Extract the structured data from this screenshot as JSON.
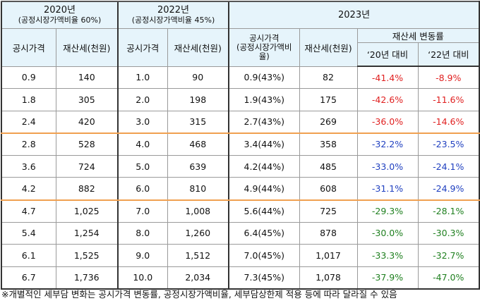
{
  "header": {
    "y2020": {
      "title": "2020년",
      "sub": "(공정시장가액비율 60%)"
    },
    "y2022": {
      "title": "2022년",
      "sub": "(공정시장가액비율 45%)"
    },
    "y2023": {
      "title": "2023년"
    },
    "col_price": "공시가격",
    "col_tax": "재산세(천원)",
    "col_price_ratio_1": "공시가격",
    "col_price_ratio_2": "(공정시장가액비",
    "col_price_ratio_3": "율)",
    "col_change": "재산세 변동률",
    "col_vs2020": "‘20년 대비",
    "col_vs2022": "‘22년 대비"
  },
  "rows": [
    {
      "p20": "0.9",
      "t20": "140",
      "p22": "1.0",
      "t22": "90",
      "p23": "0.9(43%)",
      "t23": "82",
      "c20": "-41.4%",
      "c22": "-8.9%"
    },
    {
      "p20": "1.8",
      "t20": "305",
      "p22": "2.0",
      "t22": "198",
      "p23": "1.9(43%)",
      "t23": "175",
      "c20": "-42.6%",
      "c22": "-11.6%"
    },
    {
      "p20": "2.4",
      "t20": "420",
      "p22": "3.0",
      "t22": "315",
      "p23": "2.7(43%)",
      "t23": "269",
      "c20": "-36.0%",
      "c22": "-14.6%"
    },
    {
      "p20": "2.8",
      "t20": "528",
      "p22": "4.0",
      "t22": "468",
      "p23": "3.4(44%)",
      "t23": "358",
      "c20": "-32.2%",
      "c22": "-23.5%"
    },
    {
      "p20": "3.6",
      "t20": "724",
      "p22": "5.0",
      "t22": "639",
      "p23": "4.2(44%)",
      "t23": "485",
      "c20": "-33.0%",
      "c22": "-24.1%"
    },
    {
      "p20": "4.2",
      "t20": "882",
      "p22": "6.0",
      "t22": "810",
      "p23": "4.9(44%)",
      "t23": "608",
      "c20": "-31.1%",
      "c22": "-24.9%"
    },
    {
      "p20": "4.7",
      "t20": "1,025",
      "p22": "7.0",
      "t22": "1,008",
      "p23": "5.6(44%)",
      "t23": "725",
      "c20": "-29.3%",
      "c22": "-28.1%"
    },
    {
      "p20": "5.4",
      "t20": "1,254",
      "p22": "8.0",
      "t22": "1,260",
      "p23": "6.4(45%)",
      "t23": "878",
      "c20": "-30.0%",
      "c22": "-30.3%"
    },
    {
      "p20": "6.1",
      "t20": "1,525",
      "p22": "9.0",
      "t22": "1,512",
      "p23": "7.0(45%)",
      "t23": "1,017",
      "c20": "-33.3%",
      "c22": "-32.7%"
    },
    {
      "p20": "6.7",
      "t20": "1,736",
      "p22": "10.0",
      "t22": "2,034",
      "p23": "7.3(45%)",
      "t23": "1,078",
      "c20": "-37.9%",
      "c22": "-47.0%"
    }
  ],
  "colors": {
    "group1": "#e02020",
    "group2": "#2040c0",
    "group3": "#208020",
    "orange_rule": "#f0a050"
  },
  "footnote": "※개별적인 세부담 변화는 공시가격 변동률, 공정시장가액비율, 세부담상한제 적용 등에 따라 달라질 수 있음"
}
